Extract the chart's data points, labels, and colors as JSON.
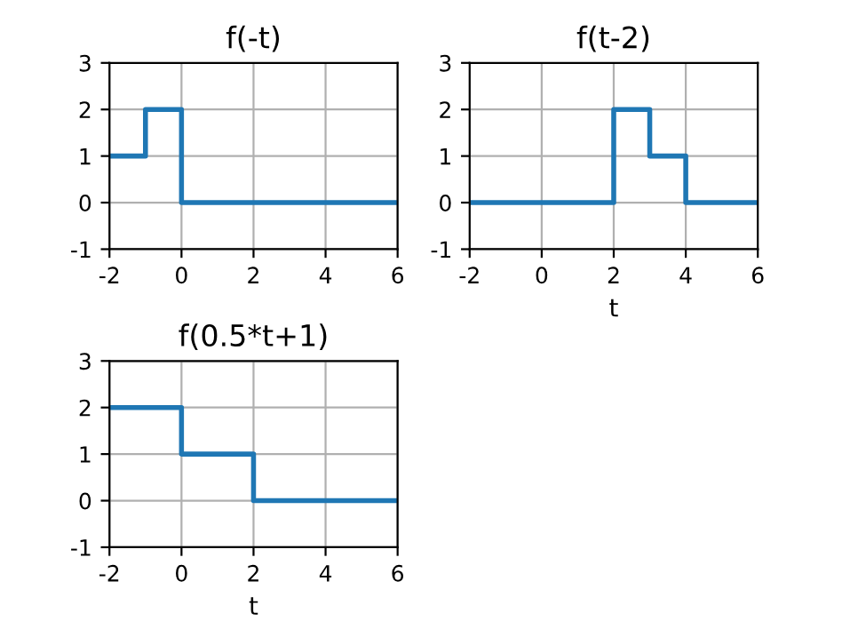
{
  "chart_data": [
    {
      "type": "step",
      "title": "f(-t)",
      "x": [
        -2,
        -1,
        0,
        6
      ],
      "series": [
        {
          "color": "#1f77b4",
          "values": [
            1,
            2,
            0,
            0
          ]
        }
      ],
      "xlim": [
        -2,
        6
      ],
      "ylim": [
        -1,
        3
      ],
      "xticks": [
        -2,
        0,
        2,
        4,
        6
      ],
      "yticks": [
        -1,
        0,
        1,
        2,
        3
      ],
      "grid": true
    },
    {
      "type": "step",
      "title": "f(t-2)",
      "xlabel": "t",
      "x": [
        -2,
        2,
        3,
        4,
        6
      ],
      "series": [
        {
          "color": "#1f77b4",
          "values": [
            0,
            2,
            1,
            0,
            0
          ]
        }
      ],
      "xlim": [
        -2,
        6
      ],
      "ylim": [
        -1,
        3
      ],
      "xticks": [
        -2,
        0,
        2,
        4,
        6
      ],
      "yticks": [
        -1,
        0,
        1,
        2,
        3
      ],
      "grid": true
    },
    {
      "type": "step",
      "title": "f(0.5*t+1)",
      "xlabel": "t",
      "x": [
        -2,
        0,
        2,
        6
      ],
      "series": [
        {
          "color": "#1f77b4",
          "values": [
            2,
            1,
            0,
            0
          ]
        }
      ],
      "xlim": [
        -2,
        6
      ],
      "ylim": [
        -1,
        3
      ],
      "xticks": [
        -2,
        0,
        2,
        4,
        6
      ],
      "yticks": [
        -1,
        0,
        1,
        2,
        3
      ],
      "grid": true
    }
  ]
}
